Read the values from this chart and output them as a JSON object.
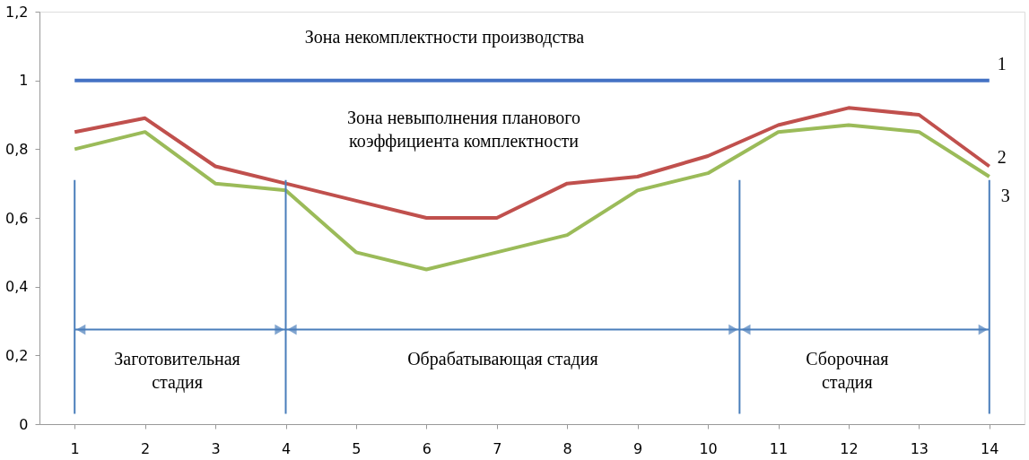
{
  "chart_data": {
    "type": "line",
    "x": [
      1,
      2,
      3,
      4,
      5,
      6,
      7,
      8,
      9,
      10,
      11,
      12,
      13,
      14
    ],
    "series": [
      {
        "name": "1",
        "color": "#4472c4",
        "values": [
          1,
          1,
          1,
          1,
          1,
          1,
          1,
          1,
          1,
          1,
          1,
          1,
          1,
          1
        ]
      },
      {
        "name": "2",
        "color": "#c0504d",
        "values": [
          0.85,
          0.89,
          0.75,
          0.7,
          0.65,
          0.6,
          0.6,
          0.7,
          0.72,
          0.78,
          0.87,
          0.92,
          0.9,
          0.75
        ]
      },
      {
        "name": "3",
        "color": "#9bbb59",
        "values": [
          0.8,
          0.85,
          0.7,
          0.68,
          0.5,
          0.45,
          0.5,
          0.55,
          0.68,
          0.73,
          0.85,
          0.87,
          0.85,
          0.72
        ]
      }
    ],
    "xlim": [
      0.5,
      14.5
    ],
    "xticks": [
      1,
      2,
      3,
      4,
      5,
      6,
      7,
      8,
      9,
      10,
      11,
      12,
      13,
      14
    ],
    "ylim": [
      0,
      1.2
    ],
    "yticks": [
      0,
      {
        "value": 0.2,
        "label": "0,2"
      },
      {
        "value": 0.4,
        "label": "0,4"
      },
      {
        "value": 0.6,
        "label": "0,6"
      },
      {
        "value": 0.8,
        "label": "0,8"
      },
      1,
      {
        "value": 1.2,
        "label": "1,2"
      }
    ],
    "ref_lines": [
      {
        "axis": "x",
        "value": 1,
        "color": "#4a7ebb"
      },
      {
        "axis": "x",
        "value": 4,
        "color": "#4a7ebb"
      },
      {
        "axis": "x",
        "value": 10.45,
        "color": "#4a7ebb"
      },
      {
        "axis": "x",
        "value": 14,
        "color": "#4a7ebb"
      }
    ],
    "annotations": [
      "Зона некомплектности производства",
      "Зона невыполнения планового\nкоэффициента комплектности",
      "Заготовительная\nстадия",
      "Обрабатывающая стадия",
      "Сборочная\nстадия"
    ],
    "grid": false,
    "legend": false,
    "marker": "none",
    "line_style": "solid"
  }
}
